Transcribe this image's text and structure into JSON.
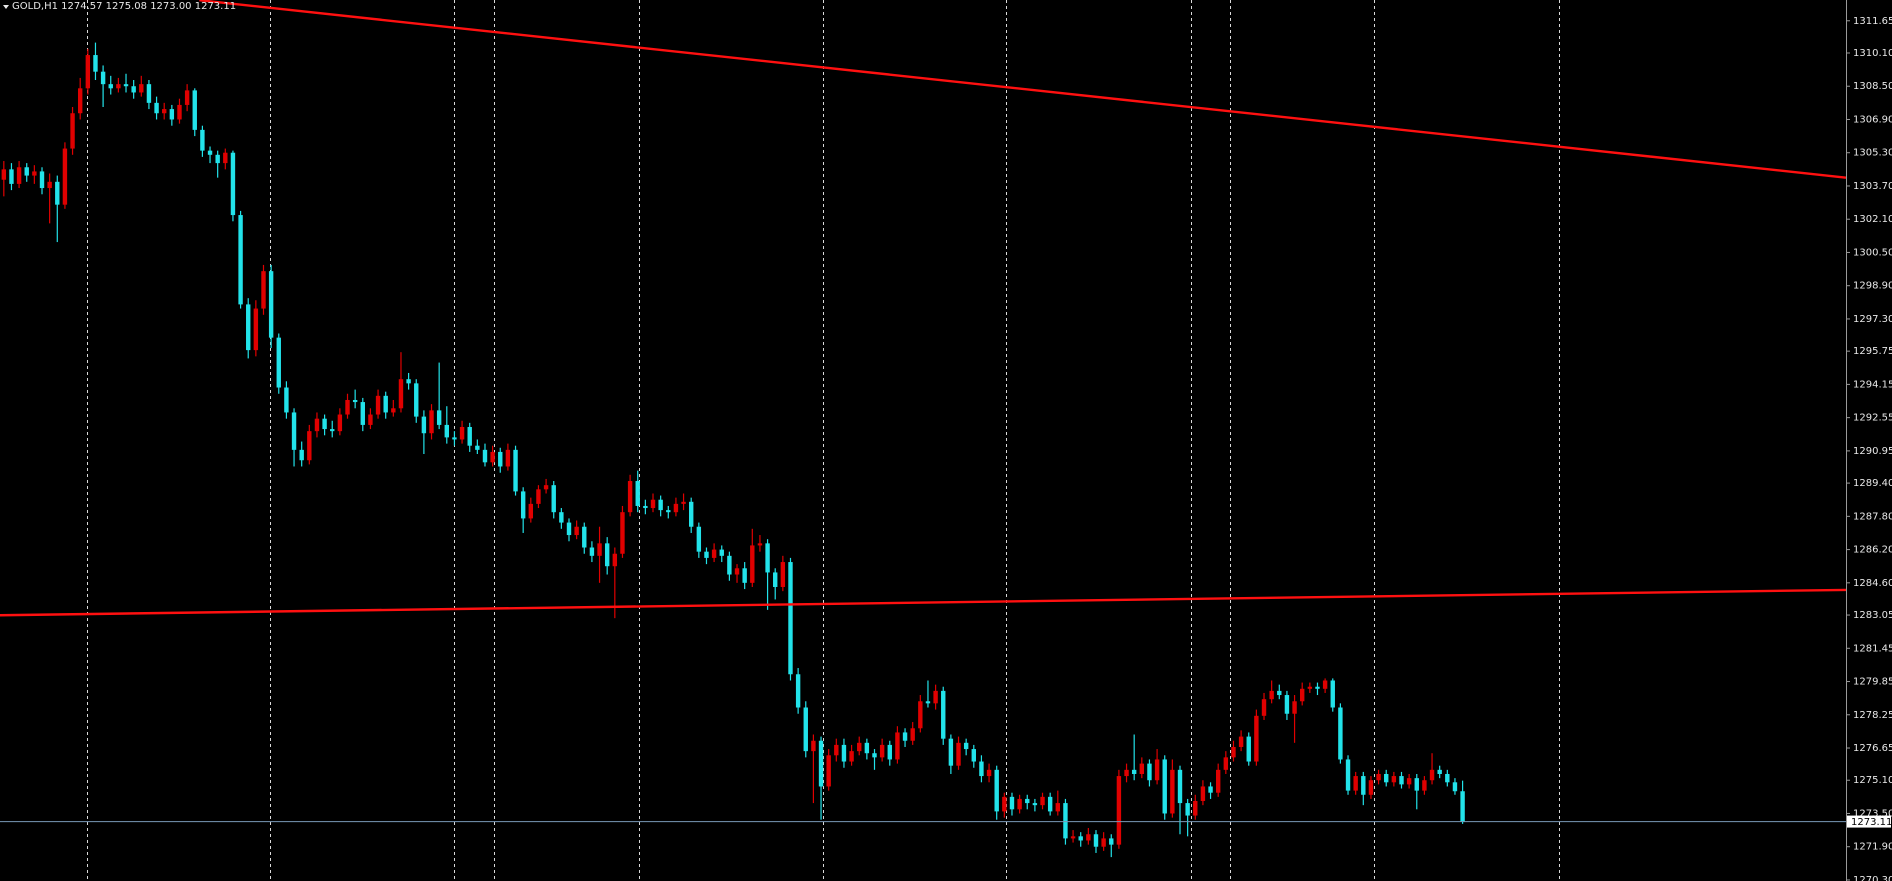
{
  "chart_data": {
    "type": "candlestick",
    "title": "GOLD,H1  1274.57 1275.08 1273.00 1273.11",
    "up_color": "#e00000",
    "down_color": "#22e3ea",
    "wick_up_color": "#e00000",
    "wick_down_color": "#22e3ea",
    "xlim": [
      -0.5,
      241.2
    ],
    "ylim": [
      1270.25,
      1312.65
    ],
    "yticks": [
      {
        "value": 1270.3,
        "label": "1270.30"
      },
      {
        "value": 1271.9,
        "label": "1271.90"
      },
      {
        "value": 1273.5,
        "label": "1273.50"
      },
      {
        "value": 1275.1,
        "label": "1275.10"
      },
      1276.65,
      {
        "value": 1278.25,
        "label": "1278.25"
      },
      {
        "value": 1279.85,
        "label": "1279.85"
      },
      1281.45,
      1283.05,
      {
        "value": 1284.6,
        "label": "1284.60"
      },
      {
        "value": 1286.2,
        "label": "1286.20"
      },
      {
        "value": 1287.8,
        "label": "1287.80"
      },
      {
        "value": 1289.4,
        "label": "1289.40"
      },
      1290.95,
      1292.55,
      1294.15,
      1295.75,
      {
        "value": 1297.3,
        "label": "1297.30"
      },
      {
        "value": 1298.9,
        "label": "1298.90"
      },
      {
        "value": 1300.5,
        "label": "1300.50"
      },
      {
        "value": 1302.1,
        "label": "1302.10"
      },
      {
        "value": 1303.7,
        "label": "1303.70"
      },
      {
        "value": 1305.3,
        "label": "1305.30"
      },
      {
        "value": 1306.9,
        "label": "1306.90"
      },
      {
        "value": 1308.5,
        "label": "1308.50"
      },
      {
        "value": 1310.1,
        "label": "1310.10"
      },
      1311.65
    ],
    "separators": [
      10.9,
      34.9,
      59,
      64.2,
      83.2,
      107.2,
      131.2,
      155.4,
      160.6,
      179.4,
      203.6
    ],
    "separator_color": "#ffffff",
    "trendlines": [
      {
        "color": "#ff1010",
        "x": [
          25.6,
          241.2
        ],
        "y": [
          1312.64,
          1304.1
        ]
      },
      {
        "color": "#ff1010",
        "x": [
          -0.5,
          241.2
        ],
        "y": [
          1283.04,
          1284.26
        ]
      }
    ],
    "current_price": 1273.11,
    "current_price_color": "#7a9ab8",
    "ohlc": [
      [
        1304.0,
        1304.9,
        1303.2,
        1304.5
      ],
      [
        1304.5,
        1304.8,
        1303.5,
        1303.8
      ],
      [
        1303.8,
        1304.9,
        1303.6,
        1304.6
      ],
      [
        1304.6,
        1304.8,
        1303.9,
        1304.2
      ],
      [
        1304.2,
        1304.7,
        1303.8,
        1304.4
      ],
      [
        1304.4,
        1304.6,
        1303.3,
        1303.6
      ],
      [
        1303.6,
        1304.3,
        1301.9,
        1303.9
      ],
      [
        1303.9,
        1304.2,
        1301.0,
        1302.8
      ],
      [
        1302.8,
        1305.8,
        1302.6,
        1305.5
      ],
      [
        1305.5,
        1307.5,
        1305.2,
        1307.2
      ],
      [
        1307.2,
        1308.9,
        1306.9,
        1308.4
      ],
      [
        1308.4,
        1310.3,
        1308.1,
        1310.0
      ],
      [
        1310.0,
        1310.6,
        1308.8,
        1309.2
      ],
      [
        1309.2,
        1309.5,
        1307.5,
        1308.6
      ],
      [
        1308.6,
        1309.0,
        1308.1,
        1308.4
      ],
      [
        1308.4,
        1308.9,
        1308.2,
        1308.6
      ],
      [
        1308.6,
        1309.1,
        1308.2,
        1308.5
      ],
      [
        1308.5,
        1308.8,
        1307.9,
        1308.2
      ],
      [
        1308.2,
        1309.0,
        1308.0,
        1308.6
      ],
      [
        1308.6,
        1308.8,
        1307.4,
        1307.7
      ],
      [
        1307.7,
        1308.0,
        1306.9,
        1307.2
      ],
      [
        1307.2,
        1307.7,
        1306.9,
        1307.4
      ],
      [
        1307.4,
        1307.6,
        1306.6,
        1306.9
      ],
      [
        1306.9,
        1307.9,
        1306.7,
        1307.6
      ],
      [
        1307.6,
        1308.6,
        1307.3,
        1308.3
      ],
      [
        1308.3,
        1308.4,
        1306.1,
        1306.4
      ],
      [
        1306.4,
        1306.6,
        1305.1,
        1305.4
      ],
      [
        1305.4,
        1305.6,
        1304.8,
        1305.2
      ],
      [
        1305.2,
        1305.4,
        1304.1,
        1304.8
      ],
      [
        1304.8,
        1305.5,
        1304.5,
        1305.3
      ],
      [
        1305.3,
        1305.4,
        1302.0,
        1302.3
      ],
      [
        1302.3,
        1302.5,
        1297.8,
        1298.0
      ],
      [
        1298.0,
        1298.3,
        1295.4,
        1295.8
      ],
      [
        1295.8,
        1298.2,
        1295.5,
        1297.8
      ],
      [
        1297.8,
        1299.9,
        1297.5,
        1299.6
      ],
      [
        1299.6,
        1299.9,
        1295.9,
        1296.4
      ],
      [
        1296.4,
        1296.6,
        1293.7,
        1294.0
      ],
      [
        1294.0,
        1294.3,
        1292.5,
        1292.8
      ],
      [
        1292.8,
        1293.0,
        1290.2,
        1291.0
      ],
      [
        1291.0,
        1291.4,
        1290.2,
        1290.5
      ],
      [
        1290.5,
        1292.2,
        1290.3,
        1291.9
      ],
      [
        1291.9,
        1292.8,
        1291.6,
        1292.5
      ],
      [
        1292.5,
        1292.7,
        1291.7,
        1292.0
      ],
      [
        1292.0,
        1292.4,
        1291.6,
        1291.9
      ],
      [
        1291.9,
        1293.0,
        1291.7,
        1292.7
      ],
      [
        1292.7,
        1293.7,
        1292.5,
        1293.4
      ],
      [
        1293.4,
        1293.9,
        1293.0,
        1293.3
      ],
      [
        1293.3,
        1293.5,
        1291.9,
        1292.2
      ],
      [
        1292.2,
        1293.0,
        1292.0,
        1292.7
      ],
      [
        1292.7,
        1293.9,
        1292.5,
        1293.6
      ],
      [
        1293.6,
        1293.8,
        1292.5,
        1292.8
      ],
      [
        1292.8,
        1293.4,
        1292.6,
        1293.0
      ],
      [
        1293.0,
        1295.7,
        1292.8,
        1294.4
      ],
      [
        1294.4,
        1294.7,
        1293.9,
        1294.2
      ],
      [
        1294.2,
        1294.4,
        1292.3,
        1292.6
      ],
      [
        1292.6,
        1292.9,
        1290.8,
        1291.8
      ],
      [
        1291.8,
        1293.2,
        1291.5,
        1292.9
      ],
      [
        1292.9,
        1295.2,
        1292.0,
        1292.2
      ],
      [
        1292.2,
        1293.1,
        1291.3,
        1291.6
      ],
      [
        1291.6,
        1291.9,
        1291.2,
        1291.5
      ],
      [
        1291.5,
        1292.4,
        1291.3,
        1292.1
      ],
      [
        1292.1,
        1292.3,
        1290.9,
        1291.2
      ],
      [
        1291.2,
        1291.5,
        1290.8,
        1291.0
      ],
      [
        1291.0,
        1291.3,
        1290.2,
        1290.4
      ],
      [
        1290.4,
        1291.2,
        1290.2,
        1290.9
      ],
      [
        1290.9,
        1291.1,
        1289.9,
        1290.2
      ],
      [
        1290.2,
        1291.3,
        1290.0,
        1291.0
      ],
      [
        1291.0,
        1291.2,
        1288.8,
        1289.0
      ],
      [
        1289.0,
        1289.2,
        1287.0,
        1287.7
      ],
      [
        1287.7,
        1288.7,
        1287.5,
        1288.4
      ],
      [
        1288.4,
        1289.3,
        1288.2,
        1289.1
      ],
      [
        1289.1,
        1289.6,
        1288.9,
        1289.3
      ],
      [
        1289.3,
        1289.5,
        1287.7,
        1288.0
      ],
      [
        1288.0,
        1288.2,
        1287.2,
        1287.5
      ],
      [
        1287.5,
        1287.7,
        1286.6,
        1286.9
      ],
      [
        1286.9,
        1287.6,
        1286.7,
        1287.3
      ],
      [
        1287.3,
        1287.5,
        1286.0,
        1286.3
      ],
      [
        1286.3,
        1286.6,
        1285.6,
        1285.9
      ],
      [
        1285.9,
        1287.3,
        1284.6,
        1286.5
      ],
      [
        1286.5,
        1286.8,
        1285.0,
        1285.4
      ],
      [
        1285.4,
        1286.3,
        1282.9,
        1286.0
      ],
      [
        1286.0,
        1288.3,
        1285.8,
        1288.0
      ],
      [
        1288.0,
        1289.8,
        1287.8,
        1289.5
      ],
      [
        1289.5,
        1290.0,
        1288.0,
        1288.3
      ],
      [
        1288.3,
        1288.6,
        1287.9,
        1288.2
      ],
      [
        1288.2,
        1288.9,
        1288.0,
        1288.6
      ],
      [
        1288.6,
        1288.8,
        1287.8,
        1288.1
      ],
      [
        1288.1,
        1288.3,
        1287.7,
        1288.0
      ],
      [
        1288.0,
        1288.7,
        1287.8,
        1288.4
      ],
      [
        1288.4,
        1288.9,
        1288.1,
        1288.5
      ],
      [
        1288.5,
        1288.7,
        1287.0,
        1287.3
      ],
      [
        1287.3,
        1287.5,
        1285.8,
        1286.1
      ],
      [
        1286.1,
        1286.3,
        1285.5,
        1285.8
      ],
      [
        1285.8,
        1286.5,
        1285.6,
        1286.2
      ],
      [
        1286.2,
        1286.4,
        1285.6,
        1285.9
      ],
      [
        1285.9,
        1286.1,
        1284.7,
        1285.0
      ],
      [
        1285.0,
        1285.5,
        1284.6,
        1285.3
      ],
      [
        1285.3,
        1285.6,
        1284.3,
        1284.6
      ],
      [
        1284.6,
        1287.2,
        1284.4,
        1286.4
      ],
      [
        1286.4,
        1286.9,
        1286.1,
        1286.5
      ],
      [
        1286.5,
        1286.7,
        1283.3,
        1285.1
      ],
      [
        1285.1,
        1285.3,
        1283.8,
        1284.4
      ],
      [
        1284.4,
        1285.9,
        1284.2,
        1285.6
      ],
      [
        1285.6,
        1285.8,
        1279.9,
        1280.2
      ],
      [
        1280.2,
        1280.5,
        1278.3,
        1278.6
      ],
      [
        1278.6,
        1278.9,
        1276.2,
        1276.5
      ],
      [
        1276.5,
        1277.3,
        1274.0,
        1277.0
      ],
      [
        1277.0,
        1277.2,
        1273.2,
        1274.8
      ],
      [
        1274.8,
        1276.6,
        1274.6,
        1276.3
      ],
      [
        1276.3,
        1277.1,
        1276.0,
        1276.8
      ],
      [
        1276.8,
        1277.1,
        1275.7,
        1276.0
      ],
      [
        1276.0,
        1276.8,
        1275.8,
        1276.5
      ],
      [
        1276.5,
        1277.2,
        1276.3,
        1276.9
      ],
      [
        1276.9,
        1277.1,
        1276.1,
        1276.4
      ],
      [
        1276.4,
        1276.6,
        1275.6,
        1276.2
      ],
      [
        1276.2,
        1277.1,
        1276.0,
        1276.8
      ],
      [
        1276.8,
        1277.0,
        1275.8,
        1276.1
      ],
      [
        1276.1,
        1277.7,
        1275.9,
        1277.4
      ],
      [
        1277.4,
        1277.6,
        1276.7,
        1277.0
      ],
      [
        1277.0,
        1277.9,
        1276.8,
        1277.6
      ],
      [
        1277.6,
        1279.2,
        1277.4,
        1278.9
      ],
      [
        1278.9,
        1279.9,
        1278.6,
        1278.8
      ],
      [
        1278.8,
        1279.7,
        1278.5,
        1279.4
      ],
      [
        1279.4,
        1279.6,
        1276.8,
        1277.1
      ],
      [
        1277.1,
        1277.3,
        1275.4,
        1275.8
      ],
      [
        1275.8,
        1277.2,
        1275.6,
        1276.9
      ],
      [
        1276.9,
        1277.1,
        1276.3,
        1276.6
      ],
      [
        1276.6,
        1276.8,
        1275.7,
        1276.0
      ],
      [
        1276.0,
        1276.3,
        1275.0,
        1275.3
      ],
      [
        1275.3,
        1275.9,
        1275.0,
        1275.6
      ],
      [
        1275.6,
        1275.8,
        1273.2,
        1273.6
      ],
      [
        1273.6,
        1274.5,
        1273.3,
        1274.3
      ],
      [
        1274.3,
        1274.5,
        1273.4,
        1273.7
      ],
      [
        1273.7,
        1274.4,
        1273.5,
        1274.2
      ],
      [
        1274.2,
        1274.4,
        1273.7,
        1274.0
      ],
      [
        1274.0,
        1274.2,
        1273.6,
        1273.9
      ],
      [
        1273.9,
        1274.5,
        1273.7,
        1274.3
      ],
      [
        1274.3,
        1274.5,
        1273.4,
        1273.6
      ],
      [
        1273.6,
        1274.6,
        1273.4,
        1274.0
      ],
      [
        1274.0,
        1274.2,
        1272.0,
        1272.3
      ],
      [
        1272.3,
        1272.7,
        1272.1,
        1272.4
      ],
      [
        1272.4,
        1272.6,
        1271.9,
        1272.2
      ],
      [
        1272.2,
        1272.8,
        1272.0,
        1272.5
      ],
      [
        1272.5,
        1272.7,
        1271.6,
        1271.9
      ],
      [
        1271.9,
        1272.6,
        1271.7,
        1272.3
      ],
      [
        1272.3,
        1272.5,
        1271.4,
        1272.0
      ],
      [
        1272.0,
        1275.6,
        1271.8,
        1275.3
      ],
      [
        1275.3,
        1275.9,
        1275.0,
        1275.6
      ],
      [
        1275.6,
        1277.3,
        1275.1,
        1275.4
      ],
      [
        1275.4,
        1276.2,
        1275.2,
        1275.9
      ],
      [
        1275.9,
        1276.1,
        1274.8,
        1275.1
      ],
      [
        1275.1,
        1276.6,
        1274.9,
        1276.1
      ],
      [
        1276.1,
        1276.3,
        1273.2,
        1273.5
      ],
      [
        1273.5,
        1276.1,
        1273.3,
        1275.6
      ],
      [
        1275.6,
        1275.8,
        1272.5,
        1274.0
      ],
      [
        1274.0,
        1274.2,
        1272.4,
        1273.4
      ],
      [
        1273.4,
        1274.4,
        1273.2,
        1274.1
      ],
      [
        1274.1,
        1275.1,
        1273.9,
        1274.8
      ],
      [
        1274.8,
        1275.0,
        1274.2,
        1274.5
      ],
      [
        1274.5,
        1275.9,
        1274.3,
        1275.6
      ],
      [
        1275.6,
        1276.5,
        1275.4,
        1276.2
      ],
      [
        1276.2,
        1277.0,
        1276.0,
        1276.7
      ],
      [
        1276.7,
        1277.5,
        1276.5,
        1277.2
      ],
      [
        1277.2,
        1277.4,
        1275.8,
        1276.0
      ],
      [
        1276.0,
        1278.5,
        1275.8,
        1278.2
      ],
      [
        1278.2,
        1279.3,
        1278.0,
        1279.0
      ],
      [
        1279.0,
        1279.9,
        1278.8,
        1279.4
      ],
      [
        1279.4,
        1279.7,
        1279.0,
        1279.2
      ],
      [
        1279.2,
        1279.4,
        1278.0,
        1278.3
      ],
      [
        1278.3,
        1279.2,
        1276.9,
        1278.9
      ],
      [
        1278.9,
        1279.8,
        1278.7,
        1279.5
      ],
      [
        1279.5,
        1279.8,
        1279.3,
        1279.6
      ],
      [
        1279.6,
        1279.8,
        1279.2,
        1279.5
      ],
      [
        1279.5,
        1280.0,
        1279.3,
        1279.9
      ],
      [
        1279.9,
        1280.0,
        1278.4,
        1278.6
      ],
      [
        1278.6,
        1278.8,
        1275.9,
        1276.1
      ],
      [
        1276.1,
        1276.3,
        1274.4,
        1274.6
      ],
      [
        1274.6,
        1275.5,
        1274.4,
        1275.3
      ],
      [
        1275.3,
        1275.5,
        1273.9,
        1274.4
      ],
      [
        1274.4,
        1275.3,
        1274.2,
        1275.1
      ],
      [
        1275.1,
        1275.6,
        1274.9,
        1275.4
      ],
      [
        1275.4,
        1275.6,
        1274.8,
        1275.0
      ],
      [
        1275.0,
        1275.5,
        1274.8,
        1275.3
      ],
      [
        1275.3,
        1275.5,
        1274.7,
        1274.9
      ],
      [
        1274.9,
        1275.4,
        1274.7,
        1275.2
      ],
      [
        1275.2,
        1275.4,
        1273.7,
        1274.6
      ],
      [
        1274.6,
        1275.3,
        1274.4,
        1275.1
      ],
      [
        1275.1,
        1276.4,
        1274.9,
        1275.6
      ],
      [
        1275.6,
        1275.8,
        1275.2,
        1275.4
      ],
      [
        1275.4,
        1275.6,
        1274.8,
        1275.0
      ],
      [
        1275.0,
        1275.2,
        1274.4,
        1274.57
      ],
      [
        1274.57,
        1275.08,
        1273.0,
        1273.11
      ]
    ]
  }
}
